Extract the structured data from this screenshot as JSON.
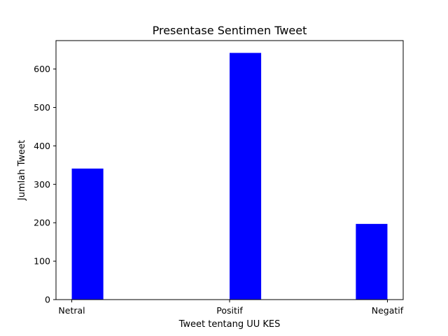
{
  "chart_data": {
    "type": "bar",
    "title": "Presentase Sentimen Tweet",
    "xlabel": "Tweet tentang UU KES",
    "ylabel": "Jumlah Tweet",
    "categories": [
      "Netral",
      "Positif",
      "Negatif"
    ],
    "bars": [
      {
        "x_start": 0.0,
        "x_end": 0.2,
        "value": 341
      },
      {
        "x_start": 1.0,
        "x_end": 1.2,
        "value": 642
      },
      {
        "x_start": 1.8,
        "x_end": 2.0,
        "value": 197
      }
    ],
    "xlim": [
      -0.1,
      2.1
    ],
    "ylim": [
      0,
      674
    ],
    "yticks": [
      0,
      100,
      200,
      300,
      400,
      500,
      600
    ],
    "xticks": [
      0,
      1,
      2
    ],
    "bar_color": "#0000ff",
    "grid": false,
    "legend": "none"
  }
}
